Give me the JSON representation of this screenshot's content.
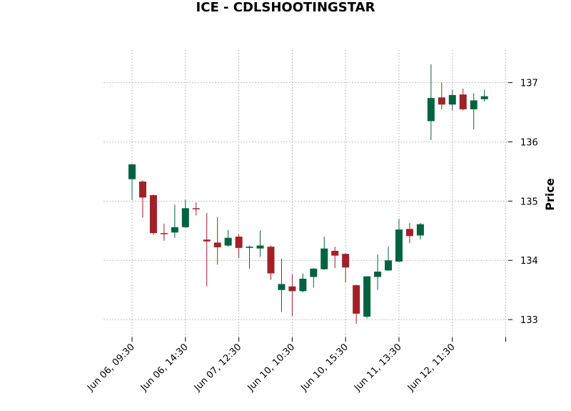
{
  "chart_data": {
    "type": "candlestick",
    "title": "ICE - CDLSHOOTINGSTAR",
    "xlabel": "",
    "ylabel": "Price",
    "ylim": [
      132.7,
      137.55
    ],
    "yticks": [
      133,
      134,
      135,
      136,
      137
    ],
    "grid": true,
    "colors": {
      "up": "#006340",
      "down": "#a02128",
      "grid": "#b0b0b0"
    },
    "x_tick_labels": [
      {
        "index": 0,
        "label": "Jun 06, 09:30"
      },
      {
        "index": 5,
        "label": "Jun 06, 14:30"
      },
      {
        "index": 10,
        "label": "Jun 07, 12:30"
      },
      {
        "index": 15,
        "label": "Jun 10, 10:30"
      },
      {
        "index": 20,
        "label": "Jun 10, 15:30"
      },
      {
        "index": 25,
        "label": "Jun 11, 13:30"
      },
      {
        "index": 30,
        "label": "Jun 12, 11:30"
      },
      {
        "index": 35,
        "label": ""
      }
    ],
    "candles": [
      {
        "o": 135.37,
        "h": 135.63,
        "l": 135.02,
        "c": 135.62
      },
      {
        "o": 135.33,
        "h": 135.35,
        "l": 134.72,
        "c": 135.06
      },
      {
        "o": 135.1,
        "h": 135.11,
        "l": 134.43,
        "c": 134.46
      },
      {
        "o": 134.46,
        "h": 134.62,
        "l": 134.33,
        "c": 134.45
      },
      {
        "o": 134.47,
        "h": 134.94,
        "l": 134.38,
        "c": 134.56
      },
      {
        "o": 134.56,
        "h": 135.02,
        "l": 134.55,
        "c": 134.88
      },
      {
        "o": 134.88,
        "h": 134.98,
        "l": 134.76,
        "c": 134.87
      },
      {
        "o": 134.35,
        "h": 134.8,
        "l": 133.56,
        "c": 134.32
      },
      {
        "o": 134.3,
        "h": 134.73,
        "l": 133.93,
        "c": 134.22
      },
      {
        "o": 134.25,
        "h": 134.51,
        "l": 134.23,
        "c": 134.38
      },
      {
        "o": 134.4,
        "h": 134.44,
        "l": 134.04,
        "c": 134.21
      },
      {
        "o": 134.21,
        "h": 134.25,
        "l": 133.86,
        "c": 134.23
      },
      {
        "o": 134.2,
        "h": 134.5,
        "l": 134.06,
        "c": 134.25
      },
      {
        "o": 134.23,
        "h": 134.25,
        "l": 133.67,
        "c": 133.78
      },
      {
        "o": 133.5,
        "h": 134.03,
        "l": 133.13,
        "c": 133.6
      },
      {
        "o": 133.56,
        "h": 133.76,
        "l": 133.06,
        "c": 133.48
      },
      {
        "o": 133.48,
        "h": 133.78,
        "l": 133.46,
        "c": 133.69
      },
      {
        "o": 133.72,
        "h": 133.87,
        "l": 133.54,
        "c": 133.86
      },
      {
        "o": 133.85,
        "h": 134.4,
        "l": 133.84,
        "c": 134.2
      },
      {
        "o": 134.16,
        "h": 134.23,
        "l": 133.87,
        "c": 134.08
      },
      {
        "o": 134.11,
        "h": 134.12,
        "l": 133.63,
        "c": 133.88
      },
      {
        "o": 133.58,
        "h": 133.59,
        "l": 132.93,
        "c": 133.1
      },
      {
        "o": 133.05,
        "h": 133.73,
        "l": 133.02,
        "c": 133.73
      },
      {
        "o": 133.72,
        "h": 134.1,
        "l": 133.5,
        "c": 133.81
      },
      {
        "o": 133.83,
        "h": 134.23,
        "l": 133.82,
        "c": 134.0
      },
      {
        "o": 133.98,
        "h": 134.7,
        "l": 133.97,
        "c": 134.52
      },
      {
        "o": 134.53,
        "h": 134.63,
        "l": 134.29,
        "c": 134.41
      },
      {
        "o": 134.42,
        "h": 134.63,
        "l": 134.35,
        "c": 134.61
      },
      {
        "o": 136.35,
        "h": 137.31,
        "l": 136.03,
        "c": 136.74
      },
      {
        "o": 136.75,
        "h": 137.0,
        "l": 136.55,
        "c": 136.63
      },
      {
        "o": 136.63,
        "h": 136.88,
        "l": 136.53,
        "c": 136.79
      },
      {
        "o": 136.8,
        "h": 136.9,
        "l": 136.53,
        "c": 136.55
      },
      {
        "o": 136.55,
        "h": 136.82,
        "l": 136.21,
        "c": 136.7
      },
      {
        "o": 136.72,
        "h": 136.88,
        "l": 136.68,
        "c": 136.77
      }
    ]
  }
}
